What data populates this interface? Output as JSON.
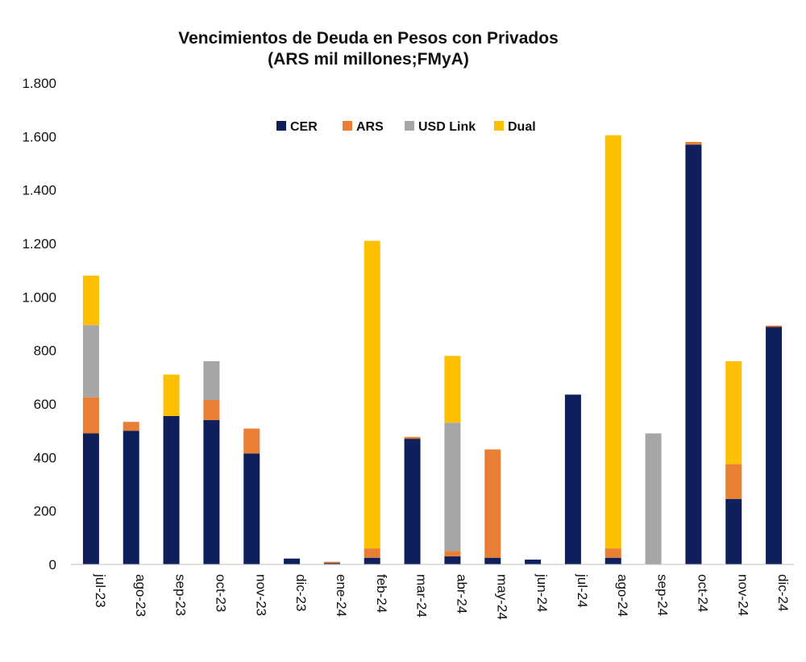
{
  "chart_data": {
    "type": "bar",
    "stacked": true,
    "title": "Vencimientos de Deuda en Pesos con Privados",
    "subtitle": "(ARS mil millones;FMyA)",
    "xlabel": "",
    "ylabel": "",
    "ylim": [
      0,
      1800
    ],
    "yticks": [
      0,
      200,
      400,
      600,
      800,
      1000,
      1200,
      1400,
      1600,
      1800
    ],
    "ytick_labels": [
      "0",
      "200",
      "400",
      "600",
      "800",
      "1.000",
      "1.200",
      "1.400",
      "1.600",
      "1.800"
    ],
    "legend_position": "top-center",
    "grid": false,
    "categories": [
      "jul-23",
      "ago-23",
      "sep-23",
      "oct-23",
      "nov-23",
      "dic-23",
      "ene-24",
      "feb-24",
      "mar-24",
      "abr-24",
      "may-24",
      "jun-24",
      "jul-24",
      "ago-24",
      "sep-24",
      "oct-24",
      "nov-24",
      "dic-24"
    ],
    "series": [
      {
        "name": "CER",
        "color": "#0f1f5c",
        "values": [
          490,
          500,
          555,
          540,
          415,
          22,
          5,
          25,
          470,
          30,
          25,
          18,
          635,
          25,
          0,
          1570,
          245,
          888
        ]
      },
      {
        "name": "ARS",
        "color": "#e97f34",
        "values": [
          135,
          33,
          0,
          75,
          93,
          0,
          5,
          35,
          7,
          20,
          405,
          0,
          0,
          35,
          0,
          10,
          130,
          5
        ]
      },
      {
        "name": "USD Link",
        "color": "#a6a6a6",
        "values": [
          270,
          0,
          0,
          145,
          0,
          0,
          0,
          0,
          0,
          480,
          0,
          0,
          0,
          0,
          490,
          0,
          0,
          0
        ]
      },
      {
        "name": "Dual",
        "color": "#fcc000",
        "values": [
          185,
          0,
          155,
          0,
          0,
          0,
          0,
          1150,
          0,
          250,
          0,
          0,
          0,
          1545,
          0,
          0,
          385,
          0
        ]
      }
    ]
  }
}
